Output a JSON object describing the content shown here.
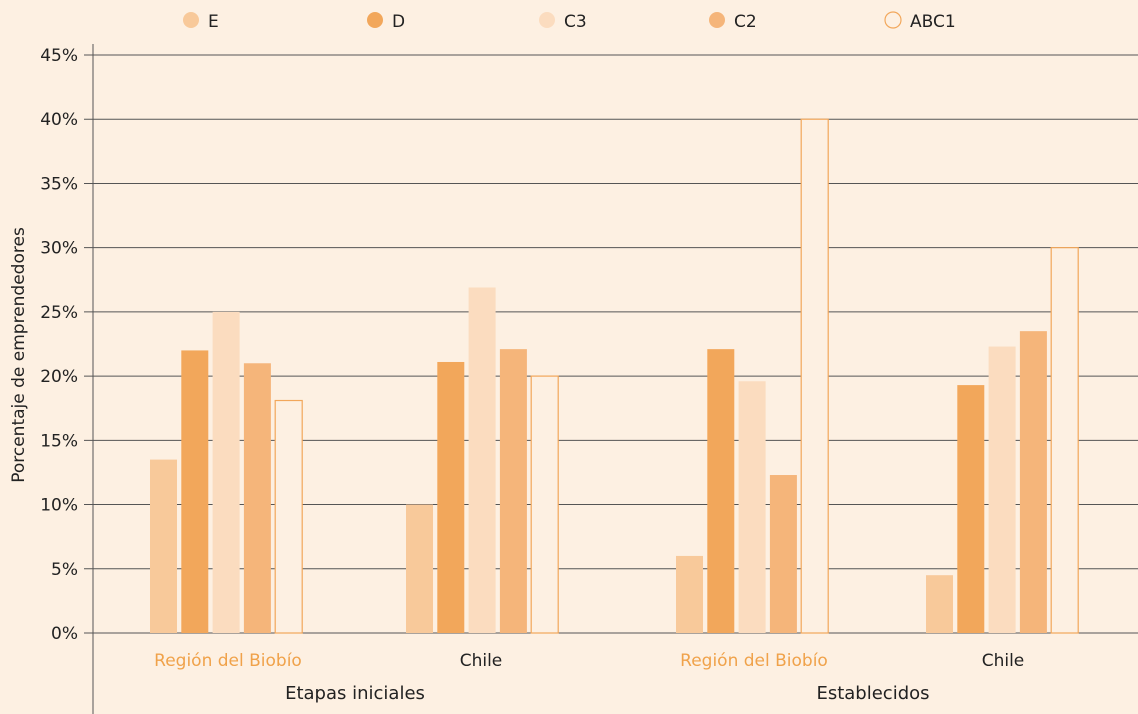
{
  "chart_data": {
    "type": "bar",
    "ylabel": "Porcentaje de emprendedores",
    "ylim": [
      0,
      45
    ],
    "yticks": [
      "0%",
      "5%",
      "10%",
      "15%",
      "20%",
      "25%",
      "30%",
      "35%",
      "40%",
      "45%"
    ],
    "grid": true,
    "legend_position": "top",
    "groups": [
      {
        "label": "Etapas iniciales",
        "categories": [
          "Región del Biobío",
          "Chile"
        ]
      },
      {
        "label": "Establecidos",
        "categories": [
          "Región del Biobío",
          "Chile"
        ]
      }
    ],
    "category_label_colors": [
      "#f0a24a",
      "#222222",
      "#f0a24a",
      "#222222"
    ],
    "series": [
      {
        "name": "E",
        "color": "#f8c99a",
        "values": [
          13.5,
          10.0,
          6.0,
          4.5
        ]
      },
      {
        "name": "D",
        "color": "#f2a75b",
        "values": [
          22.0,
          21.1,
          22.1,
          19.3
        ]
      },
      {
        "name": "C3",
        "color": "#fbdcbf",
        "values": [
          25.0,
          26.9,
          19.6,
          22.3
        ]
      },
      {
        "name": "C2",
        "color": "#f5b57a",
        "values": [
          21.0,
          22.1,
          12.3,
          23.5
        ]
      },
      {
        "name": "ABC1",
        "color": "#fdf0e2",
        "stroke": "#f2a75b",
        "values": [
          18.1,
          20.0,
          40.0,
          30.0
        ]
      }
    ]
  }
}
